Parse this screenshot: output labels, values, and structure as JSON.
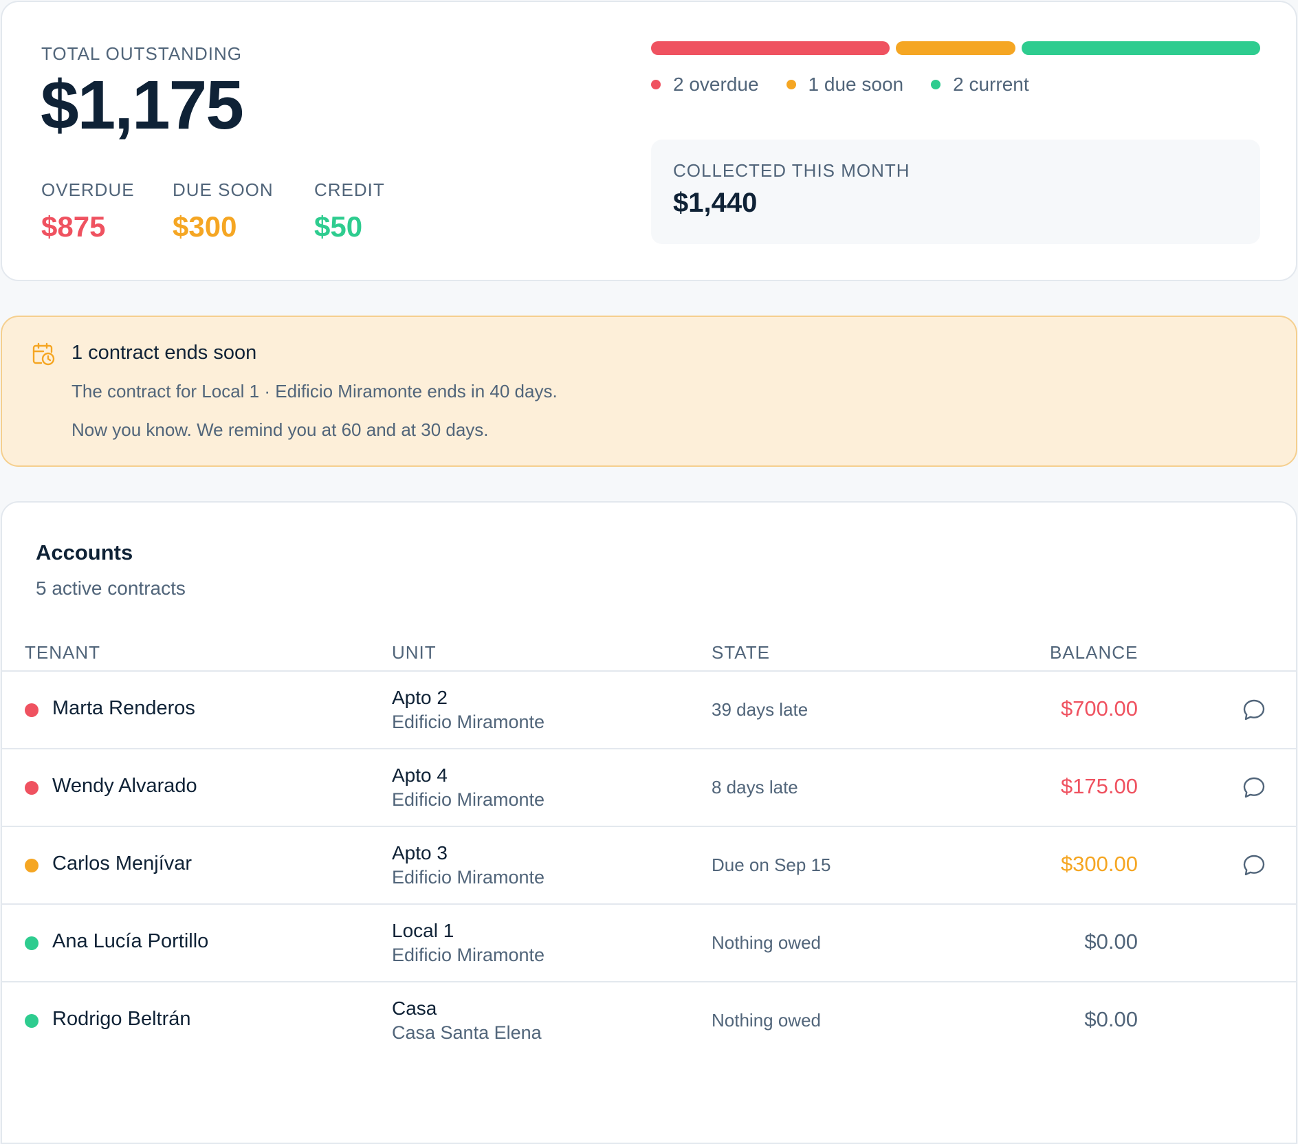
{
  "summary": {
    "total_label": "TOTAL OUTSTANDING",
    "total_value": "$1,175",
    "stats": [
      {
        "label": "OVERDUE",
        "value": "$875",
        "color": "#ef5260"
      },
      {
        "label": "DUE SOON",
        "value": "$300",
        "color": "#f5a623"
      },
      {
        "label": "CREDIT",
        "value": "$50",
        "color": "#2ecc8f"
      }
    ],
    "distribution": [
      {
        "label": "2 overdue",
        "count": 2,
        "color": "#ef5260"
      },
      {
        "label": "1 due soon",
        "count": 1,
        "color": "#f5a623"
      },
      {
        "label": "2 current",
        "count": 2,
        "color": "#2ecc8f"
      }
    ],
    "collected_label": "COLLECTED THIS MONTH",
    "collected_value": "$1,440"
  },
  "alert": {
    "icon": "calendar-clock-icon",
    "title": "1 contract ends soon",
    "line1": "The contract for Local 1 · Edificio Miramonte ends in 40 days.",
    "line2": "Now you know. We remind you at 60 and at 30 days."
  },
  "accounts": {
    "title": "Accounts",
    "subtitle": "5 active contracts",
    "columns": {
      "tenant": "TENANT",
      "unit": "UNIT",
      "state": "STATE",
      "balance": "BALANCE"
    },
    "rows": [
      {
        "tenant": "Marta Renderos",
        "unit": "Apto 2",
        "building": "Edificio Miramonte",
        "state": "39 days late",
        "balance": "$700.00",
        "status_color": "#ef5260",
        "balance_color": "#ef5260",
        "message_icon": true
      },
      {
        "tenant": "Wendy Alvarado",
        "unit": "Apto 4",
        "building": "Edificio Miramonte",
        "state": "8 days late",
        "balance": "$175.00",
        "status_color": "#ef5260",
        "balance_color": "#ef5260",
        "message_icon": true
      },
      {
        "tenant": "Carlos Menjívar",
        "unit": "Apto 3",
        "building": "Edificio Miramonte",
        "state": "Due on Sep 15",
        "balance": "$300.00",
        "status_color": "#f5a623",
        "balance_color": "#f5a623",
        "message_icon": true
      },
      {
        "tenant": "Ana Lucía Portillo",
        "unit": "Local 1",
        "building": "Edificio Miramonte",
        "state": "Nothing owed",
        "balance": "$0.00",
        "status_color": "#2ecc8f",
        "balance_color": "#51657a",
        "message_icon": false
      },
      {
        "tenant": "Rodrigo Beltrán",
        "unit": "Casa",
        "building": "Casa Santa Elena",
        "state": "Nothing owed",
        "balance": "$0.00",
        "status_color": "#2ecc8f",
        "balance_color": "#51657a",
        "message_icon": false
      }
    ]
  }
}
